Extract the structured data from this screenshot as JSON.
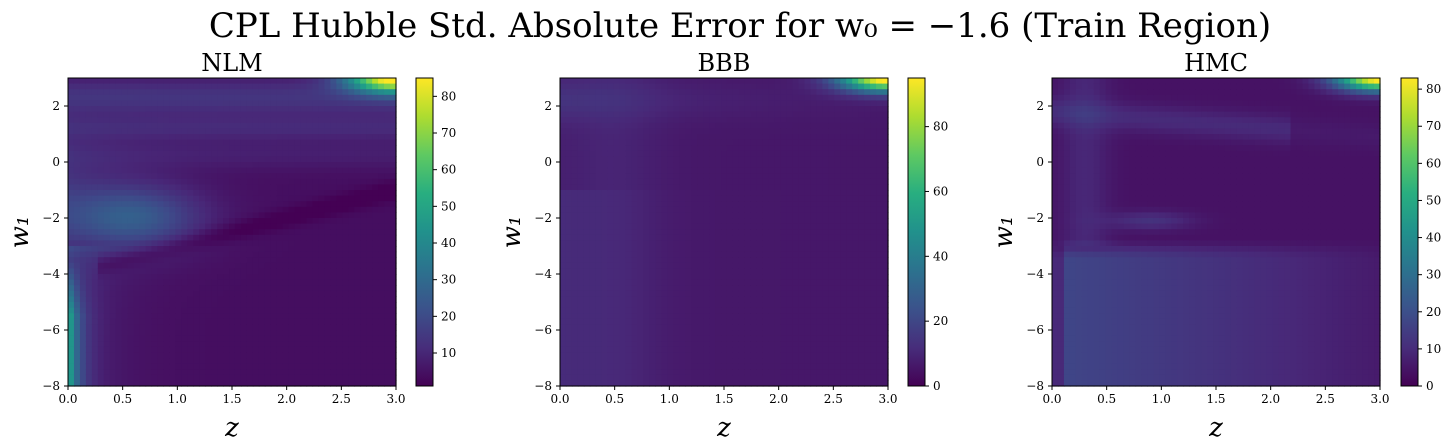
{
  "figure": {
    "title": "CPL Hubble Std. Absolute Error for w₀ = −1.6 (Train Region)"
  },
  "chart_data": [
    {
      "type": "heatmap",
      "title": "NLM",
      "xlabel": "z",
      "ylabel": "w₁",
      "xlim": [
        0.0,
        3.0
      ],
      "ylim": [
        -8,
        3
      ],
      "xticks": [
        "0.0",
        "0.5",
        "1.0",
        "1.5",
        "2.0",
        "2.5",
        "3.0"
      ],
      "yticks": [
        "−8",
        "−6",
        "−4",
        "−2",
        "0",
        "2"
      ],
      "colorbar": {
        "min": 1,
        "max": 85,
        "ticks": [
          "10",
          "20",
          "30",
          "40",
          "50",
          "60",
          "70",
          "80"
        ]
      },
      "colormap": "viridis",
      "features": {
        "max_corner_value": 85,
        "low_z_low_w1_value": 55,
        "blob_center": [
          0.6,
          -2.0
        ],
        "blob_value": 25
      }
    },
    {
      "type": "heatmap",
      "title": "BBB",
      "xlabel": "z",
      "ylabel": "w₁",
      "xlim": [
        0.0,
        3.0
      ],
      "ylim": [
        -8,
        3
      ],
      "xticks": [
        "0.0",
        "0.5",
        "1.0",
        "1.5",
        "2.0",
        "2.5",
        "3.0"
      ],
      "yticks": [
        "−8",
        "−6",
        "−4",
        "−2",
        "0",
        "2"
      ],
      "colorbar": {
        "min": 0,
        "max": 95,
        "ticks": [
          "0",
          "20",
          "40",
          "60",
          "80"
        ]
      },
      "colormap": "viridis",
      "features": {
        "max_corner_value": 95,
        "background_value": 6
      }
    },
    {
      "type": "heatmap",
      "title": "HMC",
      "xlabel": "z",
      "ylabel": "w₁",
      "xlim": [
        0.0,
        3.0
      ],
      "ylim": [
        -8,
        3
      ],
      "xticks": [
        "0.0",
        "0.5",
        "1.0",
        "1.5",
        "2.0",
        "2.5",
        "3.0"
      ],
      "yticks": [
        "−8",
        "−6",
        "−4",
        "−2",
        "0",
        "2"
      ],
      "colorbar": {
        "min": 0,
        "max": 83,
        "ticks": [
          "0",
          "10",
          "20",
          "30",
          "40",
          "50",
          "60",
          "70",
          "80"
        ]
      },
      "colormap": "viridis",
      "features": {
        "max_corner_value": 83,
        "lower_region_value": 18
      }
    }
  ]
}
